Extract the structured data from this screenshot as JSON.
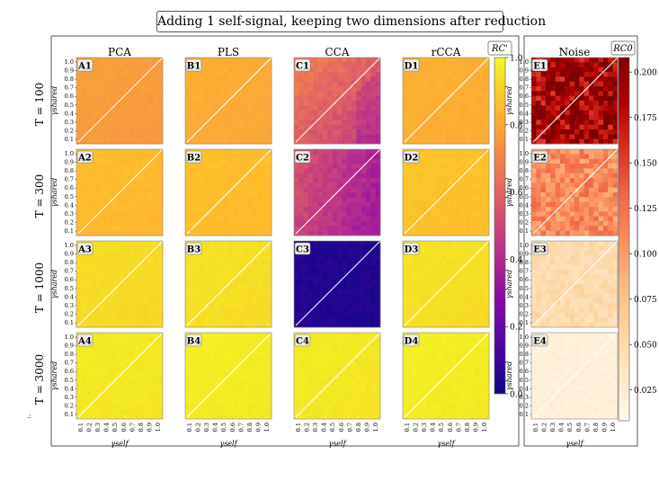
{
  "title": "Adding 1 self-signal, keeping two dimensions after reduction",
  "stray_mark": ".:",
  "colors": {
    "panel_border": "#555555",
    "diagonal": "#ffffff"
  },
  "chart_data": {
    "type": "heatmap",
    "title": "Adding 1 self-signal, keeping two dimensions after reduction",
    "columns": [
      "PCA",
      "PLS",
      "CCA",
      "rCCA",
      "Noise"
    ],
    "rows": [
      "T = 100",
      "T = 300",
      "T = 1000",
      "T = 3000"
    ],
    "panel_labels": [
      [
        "A1",
        "B1",
        "C1",
        "D1",
        "E1"
      ],
      [
        "A2",
        "B2",
        "C2",
        "D2",
        "E2"
      ],
      [
        "A3",
        "B3",
        "C3",
        "D3",
        "E3"
      ],
      [
        "A4",
        "B4",
        "C4",
        "D4",
        "E4"
      ]
    ],
    "xlabel": "γself",
    "ylabel": "γshared",
    "xticks": [
      "0.1",
      "0.2",
      "0.3",
      "0.4",
      "0.5",
      "0.6",
      "0.7",
      "0.8",
      "0.9",
      "1.0"
    ],
    "yticks": [
      "1.0",
      "0.9",
      "0.8",
      "0.7",
      "0.6",
      "0.5",
      "0.4",
      "0.3",
      "0.2",
      "0.1"
    ],
    "colorbar_main": {
      "label": "RC'",
      "colormap": "plasma",
      "range": [
        0,
        1.0
      ],
      "ticks": [
        "0.0",
        "0.2",
        "0.4",
        "0.6",
        "0.8",
        "1.0"
      ]
    },
    "colorbar_noise": {
      "label": "RC0",
      "colormap": "OrRd",
      "range": [
        0.008,
        0.208
      ],
      "ticks": [
        "0.025",
        "0.050",
        "0.075",
        "0.100",
        "0.125",
        "0.150",
        "0.175",
        "0.200"
      ]
    },
    "panel_means": {
      "PCA": [
        0.77,
        0.85,
        0.93,
        0.96
      ],
      "PLS": [
        0.81,
        0.86,
        0.94,
        0.97
      ],
      "CCA": [
        0.5,
        0.4,
        0.05,
        0.96
      ],
      "rCCA": [
        0.82,
        0.87,
        0.94,
        0.97
      ],
      "Noise": [
        0.19,
        0.11,
        0.05,
        0.02
      ]
    },
    "diagonal": "white line from (γself=0.1, γshared=0.1) to (γself=1.0, γshared=1.0)"
  }
}
